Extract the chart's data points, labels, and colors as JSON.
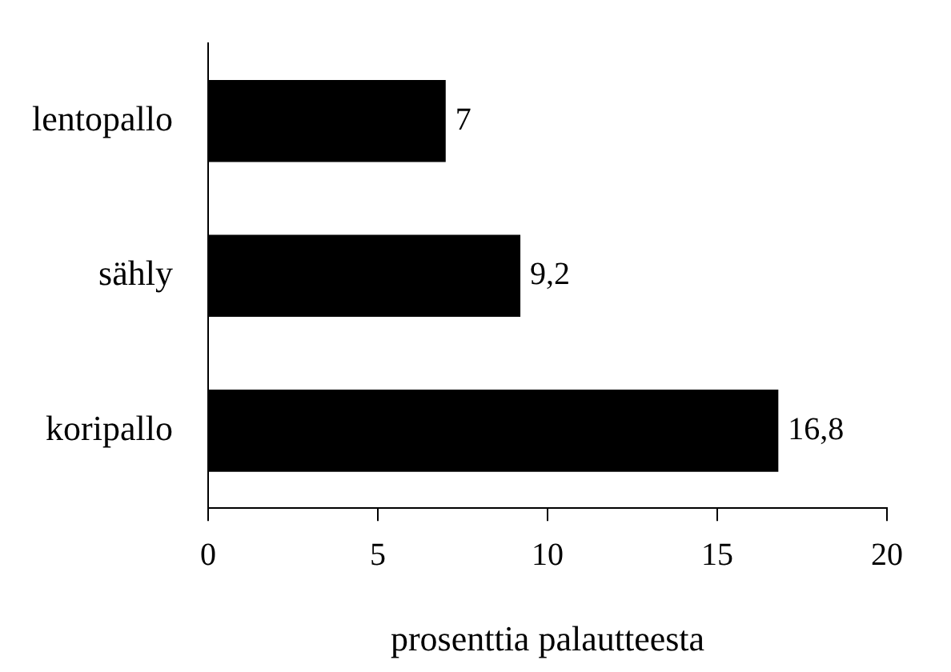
{
  "chart_data": {
    "type": "bar",
    "orientation": "horizontal",
    "categories": [
      "lentopallo",
      "sähly",
      "koripallo"
    ],
    "values": [
      7,
      9.2,
      16.8
    ],
    "color": "#000000",
    "value_labels": [
      "7",
      "9,2",
      "16,8"
    ],
    "xlabel": "prosenttia palautteesta",
    "xlim": [
      0,
      20
    ],
    "xticks": [
      0,
      5,
      10,
      15,
      20
    ],
    "grid": false,
    "legend": false
  }
}
